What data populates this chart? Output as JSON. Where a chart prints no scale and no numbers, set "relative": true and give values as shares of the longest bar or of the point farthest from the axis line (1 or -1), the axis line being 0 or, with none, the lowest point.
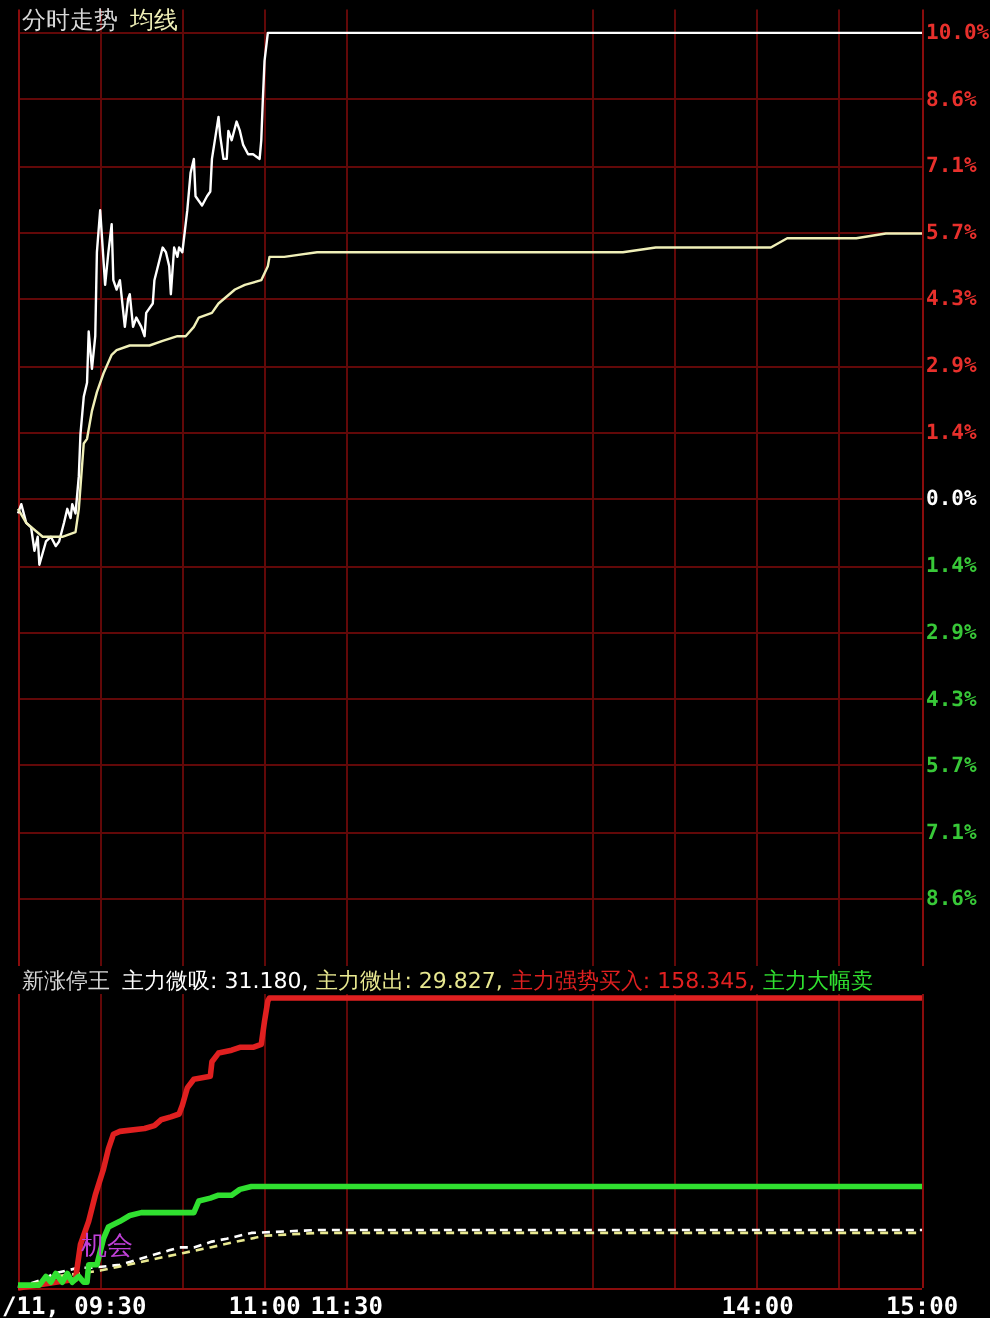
{
  "chart_data": [
    {
      "type": "line",
      "title": "分时走势",
      "legend": "top left",
      "grid": true,
      "tick_labels": "y",
      "xlim": [
        9.5,
        15
      ],
      "xticks": [
        9.5,
        10,
        10.5,
        11,
        11.5,
        13,
        13.5,
        14,
        14.5,
        15
      ],
      "ylim": [
        -10,
        10.5
      ],
      "yticks": [
        {
          "value": 10,
          "label": "10.0%"
        },
        {
          "value": 8.57,
          "label": "8.6%"
        },
        {
          "value": 7.14,
          "label": "7.1%"
        },
        {
          "value": 5.71,
          "label": "5.7%"
        },
        {
          "value": 4.29,
          "label": "4.3%"
        },
        {
          "value": 2.86,
          "label": "2.9%"
        },
        {
          "value": 1.43,
          "label": "1.4%"
        },
        {
          "value": 0,
          "label": "0.0%"
        },
        {
          "value": -1.43,
          "label": "1.4%"
        },
        {
          "value": -2.86,
          "label": "2.9%"
        },
        {
          "value": -4.29,
          "label": "4.3%"
        },
        {
          "value": -5.71,
          "label": "5.7%"
        },
        {
          "value": -7.14,
          "label": "7.1%"
        },
        {
          "value": -8.57,
          "label": "8.6%"
        }
      ],
      "series": [
        {
          "color": "#ffffff",
          "x": [
            9.5,
            9.52,
            9.55,
            9.58,
            9.6,
            9.62,
            9.63,
            9.67,
            9.7,
            9.73,
            9.75,
            9.78,
            9.8,
            9.82,
            9.83,
            9.85,
            9.87,
            9.88,
            9.9,
            9.92,
            9.93,
            9.95,
            9.97,
            9.98,
            10.0,
            10.03,
            10.05,
            10.07,
            10.08,
            10.1,
            10.12,
            10.15,
            10.17,
            10.18,
            10.2,
            10.22,
            10.25,
            10.27,
            10.28,
            10.32,
            10.33,
            10.38,
            10.4,
            10.42,
            10.43,
            10.45,
            10.47,
            10.48,
            10.5,
            10.53,
            10.55,
            10.57,
            10.58,
            10.62,
            10.65,
            10.67,
            10.68,
            10.72,
            10.73,
            10.75,
            10.77,
            10.78,
            10.8,
            10.83,
            10.85,
            10.87,
            10.9,
            10.93,
            10.97,
            10.98,
            10.99,
            11.0,
            11.02,
            15.0
          ],
          "values": [
            -0.3,
            -0.1,
            -0.5,
            -0.6,
            -1.1,
            -0.8,
            -1.4,
            -0.9,
            -0.8,
            -1.0,
            -0.9,
            -0.5,
            -0.2,
            -0.4,
            -0.1,
            -0.3,
            0.5,
            1.4,
            2.2,
            2.5,
            3.6,
            2.8,
            3.5,
            5.3,
            6.2,
            4.6,
            5.3,
            5.9,
            4.7,
            4.5,
            4.7,
            3.7,
            4.3,
            4.4,
            3.7,
            3.9,
            3.7,
            3.5,
            4.0,
            4.2,
            4.7,
            5.4,
            5.3,
            5.0,
            4.4,
            5.4,
            5.2,
            5.4,
            5.3,
            6.2,
            7.0,
            7.3,
            6.5,
            6.3,
            6.5,
            6.6,
            7.3,
            8.2,
            7.8,
            7.3,
            7.3,
            7.9,
            7.7,
            8.1,
            7.9,
            7.6,
            7.4,
            7.4,
            7.3,
            7.7,
            8.6,
            9.4,
            10.0,
            10.0
          ]
        },
        {
          "name": "均线",
          "color": "#f0f0b8",
          "x": [
            9.5,
            9.55,
            9.65,
            9.77,
            9.85,
            9.87,
            9.9,
            9.92,
            9.95,
            9.98,
            10.02,
            10.07,
            10.1,
            10.18,
            10.3,
            10.38,
            10.47,
            10.52,
            10.57,
            10.6,
            10.68,
            10.72,
            10.82,
            10.88,
            10.98,
            11.02,
            11.03,
            11.12,
            11.32,
            13.02,
            13.18,
            13.38,
            13.58,
            14.08,
            14.18,
            14.6,
            14.78,
            15.0
          ],
          "values": [
            -0.2,
            -0.5,
            -0.8,
            -0.8,
            -0.7,
            -0.2,
            1.2,
            1.3,
            1.9,
            2.3,
            2.7,
            3.1,
            3.2,
            3.3,
            3.3,
            3.4,
            3.5,
            3.5,
            3.7,
            3.9,
            4.0,
            4.2,
            4.5,
            4.6,
            4.7,
            5.0,
            5.2,
            5.2,
            5.3,
            5.3,
            5.3,
            5.4,
            5.4,
            5.4,
            5.6,
            5.6,
            5.7,
            5.7
          ]
        }
      ]
    },
    {
      "type": "line",
      "title": "新涨停王",
      "relative": true,
      "legend": "top left",
      "grid": "x",
      "tick_labels": "x",
      "xlim": [
        9.5,
        15
      ],
      "xticks": [
        {
          "value": 9.5,
          "label": "/11, 09:30"
        },
        {
          "value": 10,
          "label": null
        },
        {
          "value": 10.5,
          "label": null
        },
        {
          "value": 11,
          "label": "11:00"
        },
        {
          "value": 11.5,
          "label": "11:30"
        },
        {
          "value": 13,
          "label": null
        },
        {
          "value": 13.5,
          "label": null
        },
        {
          "value": 14,
          "label": "14:00"
        },
        {
          "value": 14.5,
          "label": null
        },
        {
          "value": 15,
          "label": "15:00"
        }
      ],
      "annotations": [
        {
          "text": "机会",
          "x": 9.87,
          "y": 0.14
        }
      ],
      "series": [
        {
          "name": "主力微吸: 31.180,",
          "color": "#ffffff",
          "line_style": "dashed",
          "x": [
            9.5,
            9.65,
            9.72,
            9.87,
            9.95,
            10.12,
            10.18,
            10.3,
            10.42,
            10.48,
            10.57,
            10.68,
            10.77,
            10.92,
            11.33,
            15.0
          ],
          "values": [
            0,
            0.03,
            0.05,
            0.07,
            0.07,
            0.08,
            0.09,
            0.11,
            0.13,
            0.14,
            0.14,
            0.16,
            0.17,
            0.19,
            0.2,
            0.2
          ]
        },
        {
          "name": "主力微出: 29.827,",
          "color": "#e8e890",
          "line_style": "dashed",
          "x": [
            9.5,
            9.63,
            9.73,
            9.87,
            10.0,
            10.17,
            10.33,
            10.5,
            10.67,
            10.83,
            11.0,
            11.33,
            15.0
          ],
          "values": [
            0,
            0.02,
            0.04,
            0.05,
            0.06,
            0.08,
            0.1,
            0.12,
            0.14,
            0.16,
            0.18,
            0.19,
            0.19
          ]
        },
        {
          "name": "主力强势买入: 158.345,",
          "color": "#e02020",
          "x": [
            9.5,
            9.85,
            9.88,
            9.93,
            9.97,
            10.02,
            10.05,
            10.08,
            10.12,
            10.27,
            10.33,
            10.37,
            10.43,
            10.48,
            10.5,
            10.53,
            10.57,
            10.67,
            10.68,
            10.72,
            10.8,
            10.85,
            10.93,
            10.98,
            11.0,
            11.02,
            11.03,
            15.0
          ],
          "values": [
            0,
            0.03,
            0.15,
            0.23,
            0.32,
            0.41,
            0.48,
            0.53,
            0.54,
            0.55,
            0.56,
            0.58,
            0.59,
            0.6,
            0.63,
            0.69,
            0.72,
            0.73,
            0.78,
            0.81,
            0.82,
            0.83,
            0.83,
            0.84,
            0.92,
            0.99,
            1,
            1
          ]
        },
        {
          "name": "主力大幅卖",
          "color": "#30e030",
          "x": [
            9.5,
            9.63,
            9.67,
            9.7,
            9.73,
            9.77,
            9.8,
            9.83,
            9.87,
            9.9,
            9.92,
            9.93,
            9.98,
            10.02,
            10.05,
            10.12,
            10.18,
            10.25,
            10.57,
            10.6,
            10.67,
            10.72,
            10.8,
            10.85,
            10.92,
            15.0
          ],
          "values": [
            0.01,
            0.01,
            0.04,
            0.02,
            0.05,
            0.02,
            0.05,
            0.02,
            0.04,
            0.02,
            0.02,
            0.08,
            0.08,
            0.17,
            0.21,
            0.23,
            0.25,
            0.26,
            0.26,
            0.3,
            0.31,
            0.32,
            0.32,
            0.34,
            0.35,
            0.35
          ]
        }
      ]
    }
  ]
}
